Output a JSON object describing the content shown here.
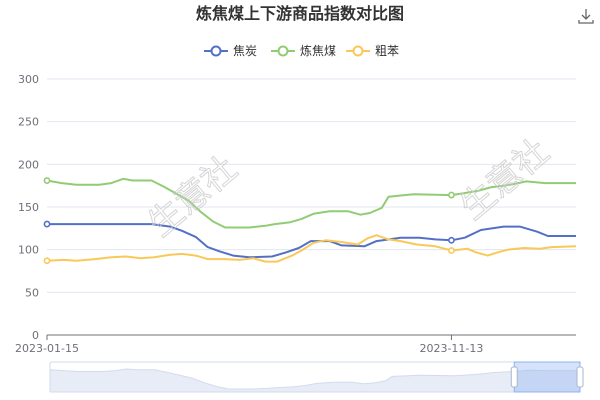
{
  "toolbar": {
    "download_icon": "download-icon"
  },
  "watermark": "生意社",
  "chart_data": {
    "type": "line",
    "title": "炼焦煤上下游商品指数对比图",
    "xlabel": "",
    "ylabel": "",
    "ylim": [
      0,
      300
    ],
    "yticks": [
      0,
      50,
      100,
      150,
      200,
      250,
      300
    ],
    "x_start": "2023-01-15",
    "x_end": "2024-02-14",
    "x_tick_labels": [
      {
        "date": "2023-01-15",
        "label": "2023-01-15"
      },
      {
        "date": "2023-11-13",
        "label": "2023-11-13"
      }
    ],
    "legend_position": "top-center",
    "grid": true,
    "dataZoom": {
      "present": true,
      "range_start": "2023-12-27",
      "range_end": "2024-02-14"
    },
    "series": [
      {
        "name": "焦炭",
        "color": "#5470c6",
        "points": [
          [
            "2023-01-15",
            130
          ],
          [
            "2023-02-10",
            130
          ],
          [
            "2023-03-08",
            130
          ],
          [
            "2023-04-03",
            130
          ],
          [
            "2023-04-17",
            127
          ],
          [
            "2023-04-26",
            122
          ],
          [
            "2023-05-06",
            115
          ],
          [
            "2023-05-15",
            103
          ],
          [
            "2023-05-24",
            98
          ],
          [
            "2023-06-03",
            93
          ],
          [
            "2023-06-15",
            91
          ],
          [
            "2023-07-02",
            92
          ],
          [
            "2023-07-13",
            97
          ],
          [
            "2023-07-22",
            102
          ],
          [
            "2023-07-31",
            110
          ],
          [
            "2023-08-14",
            110
          ],
          [
            "2023-08-23",
            105
          ],
          [
            "2023-09-09",
            104
          ],
          [
            "2023-09-18",
            110
          ],
          [
            "2023-10-06",
            114
          ],
          [
            "2023-10-20",
            114
          ],
          [
            "2023-11-01",
            112
          ],
          [
            "2023-11-13",
            111
          ],
          [
            "2023-11-23",
            114
          ],
          [
            "2023-12-05",
            123
          ],
          [
            "2023-12-22",
            127
          ],
          [
            "2024-01-03",
            127
          ],
          [
            "2024-01-16",
            121
          ],
          [
            "2024-01-24",
            116
          ],
          [
            "2024-02-14",
            116
          ]
        ]
      },
      {
        "name": "炼焦煤",
        "color": "#91cc75",
        "points": [
          [
            "2023-01-15",
            181
          ],
          [
            "2023-01-26",
            178
          ],
          [
            "2023-02-06",
            176
          ],
          [
            "2023-02-23",
            176
          ],
          [
            "2023-03-04",
            178
          ],
          [
            "2023-03-13",
            183
          ],
          [
            "2023-03-20",
            181
          ],
          [
            "2023-04-03",
            181
          ],
          [
            "2023-04-12",
            174
          ],
          [
            "2023-04-21",
            166
          ],
          [
            "2023-05-01",
            157
          ],
          [
            "2023-05-10",
            144
          ],
          [
            "2023-05-19",
            133
          ],
          [
            "2023-05-28",
            126
          ],
          [
            "2023-06-15",
            126
          ],
          [
            "2023-06-27",
            128
          ],
          [
            "2023-07-04",
            130
          ],
          [
            "2023-07-15",
            132
          ],
          [
            "2023-07-24",
            136
          ],
          [
            "2023-08-02",
            142
          ],
          [
            "2023-08-14",
            145
          ],
          [
            "2023-08-28",
            145
          ],
          [
            "2023-09-06",
            141
          ],
          [
            "2023-09-13",
            143
          ],
          [
            "2023-09-22",
            149
          ],
          [
            "2023-09-27",
            162
          ],
          [
            "2023-10-09",
            164
          ],
          [
            "2023-10-16",
            165
          ],
          [
            "2023-11-13",
            164
          ],
          [
            "2023-11-22",
            166
          ],
          [
            "2023-12-03",
            169
          ],
          [
            "2023-12-12",
            173
          ],
          [
            "2023-12-27",
            176
          ],
          [
            "2024-01-08",
            180
          ],
          [
            "2024-01-22",
            178
          ],
          [
            "2024-02-14",
            178
          ]
        ]
      },
      {
        "name": "粗苯",
        "color": "#fac858",
        "points": [
          [
            "2023-01-15",
            87
          ],
          [
            "2023-01-28",
            88
          ],
          [
            "2023-02-06",
            87
          ],
          [
            "2023-02-20",
            89
          ],
          [
            "2023-03-04",
            91
          ],
          [
            "2023-03-15",
            92
          ],
          [
            "2023-03-26",
            90
          ],
          [
            "2023-04-05",
            91
          ],
          [
            "2023-04-17",
            94
          ],
          [
            "2023-04-26",
            95
          ],
          [
            "2023-05-06",
            93
          ],
          [
            "2023-05-15",
            89
          ],
          [
            "2023-05-28",
            89
          ],
          [
            "2023-06-08",
            88
          ],
          [
            "2023-06-18",
            90
          ],
          [
            "2023-06-27",
            86
          ],
          [
            "2023-07-06",
            86
          ],
          [
            "2023-07-17",
            93
          ],
          [
            "2023-07-24",
            99
          ],
          [
            "2023-08-02",
            108
          ],
          [
            "2023-08-11",
            111
          ],
          [
            "2023-08-23",
            109
          ],
          [
            "2023-09-04",
            106
          ],
          [
            "2023-09-11",
            113
          ],
          [
            "2023-09-18",
            117
          ],
          [
            "2023-09-27",
            112
          ],
          [
            "2023-10-06",
            110
          ],
          [
            "2023-10-18",
            106
          ],
          [
            "2023-11-01",
            104
          ],
          [
            "2023-11-13",
            99
          ],
          [
            "2023-11-25",
            101
          ],
          [
            "2023-12-01",
            97
          ],
          [
            "2023-12-10",
            93
          ],
          [
            "2023-12-18",
            97
          ],
          [
            "2023-12-25",
            100
          ],
          [
            "2024-01-06",
            102
          ],
          [
            "2024-01-18",
            101
          ],
          [
            "2024-01-27",
            103
          ],
          [
            "2024-02-14",
            104
          ]
        ]
      }
    ]
  }
}
